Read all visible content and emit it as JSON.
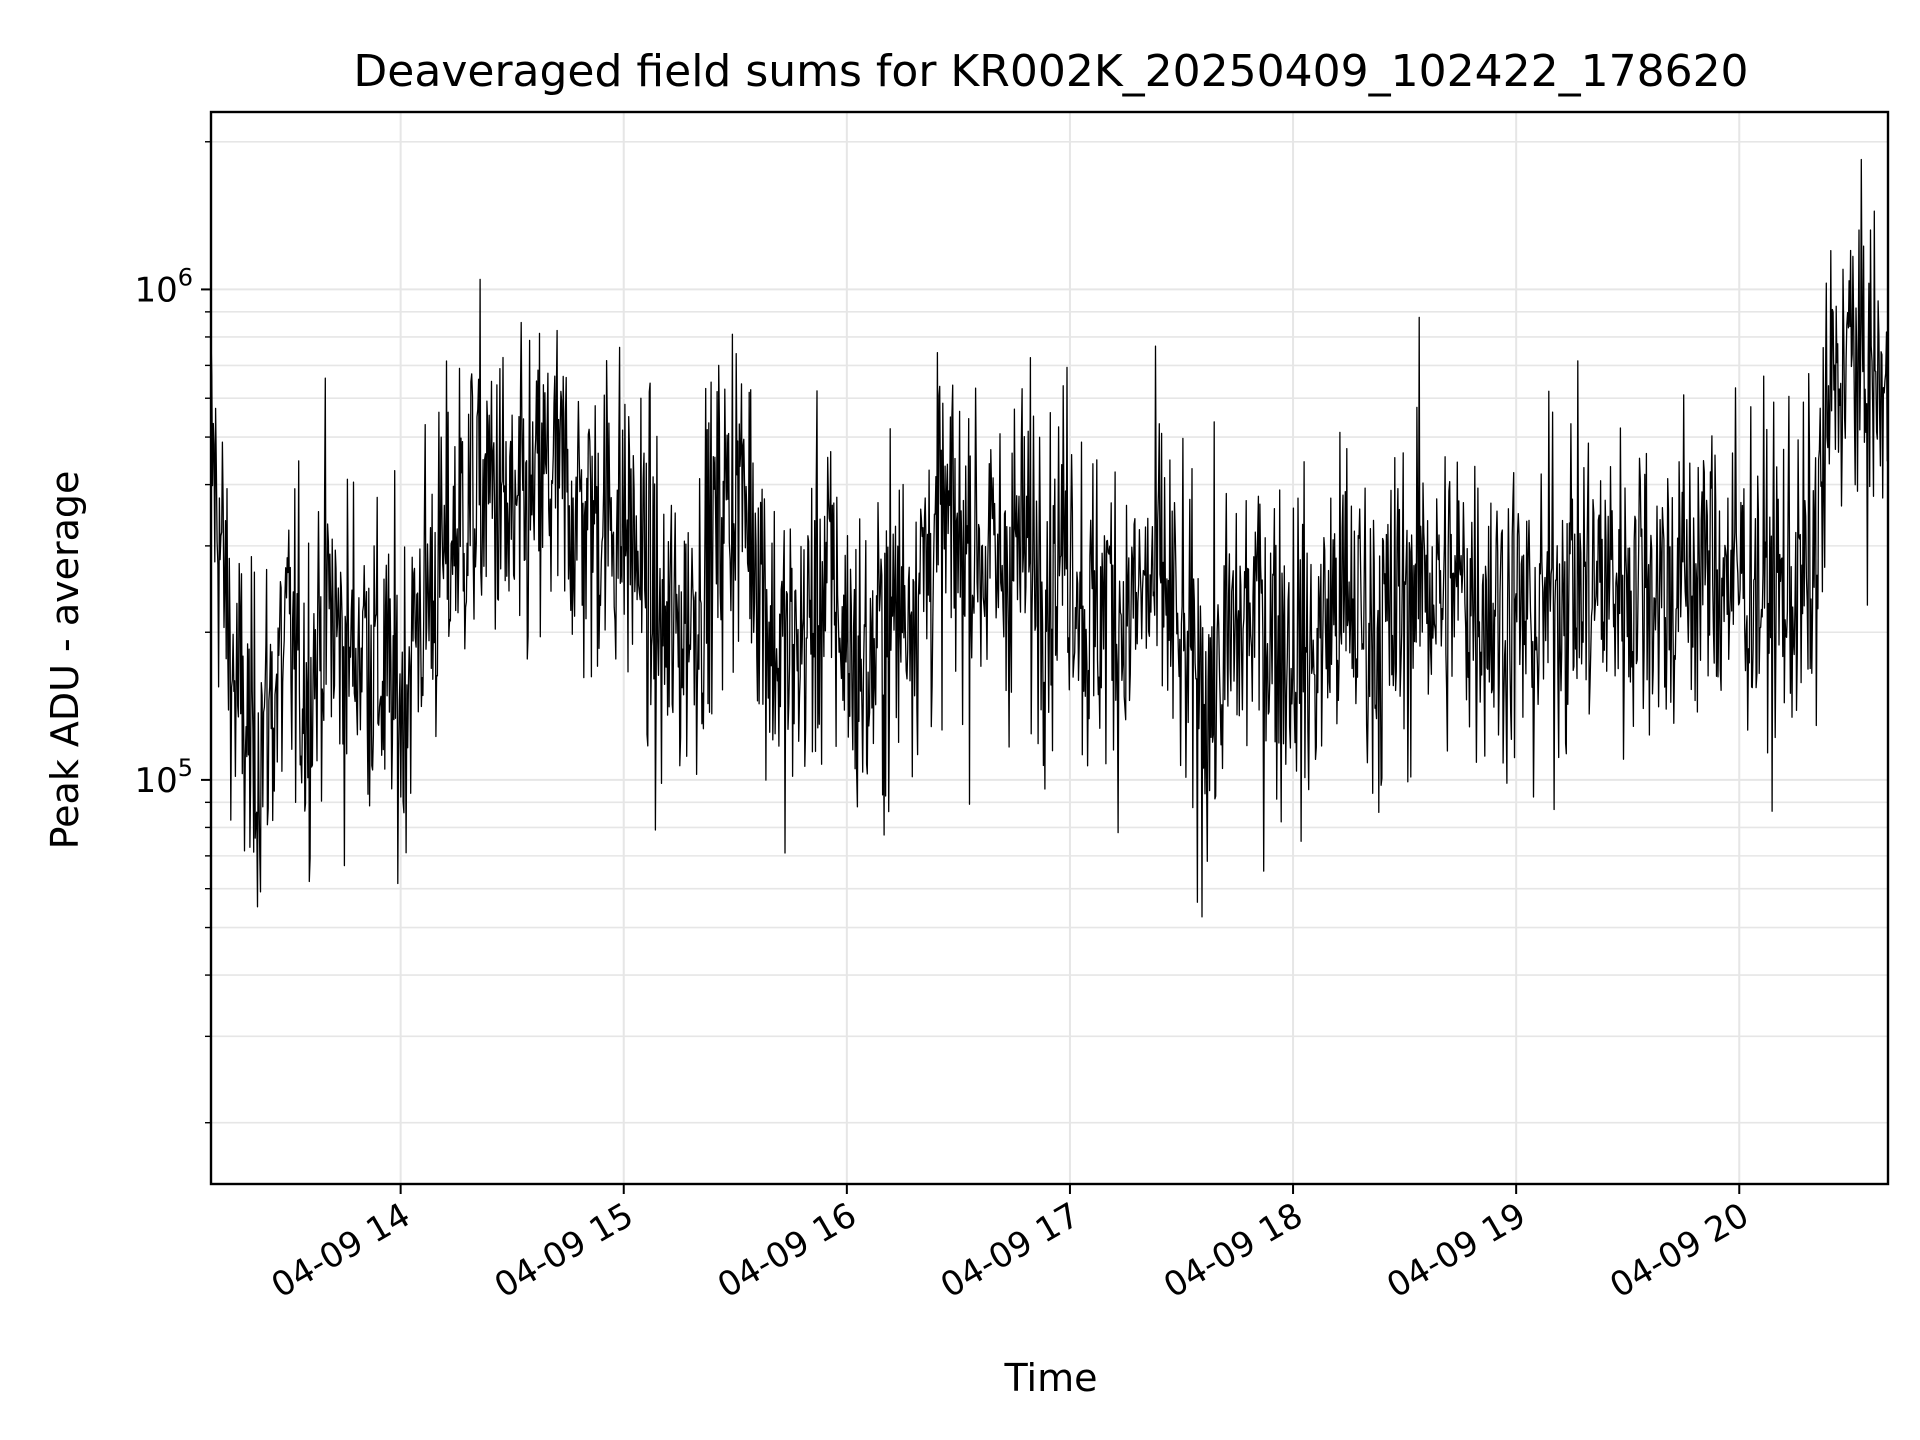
{
  "chart_data": {
    "type": "line",
    "title": "Deaveraged field sums for KR002K_20250409_102422_178620",
    "xlabel": "Time",
    "ylabel": "Peak ADU - average",
    "yscale": "log",
    "ylim": [
      15000,
      2300000
    ],
    "xlim": [
      "2025-04-09 13:09",
      "2025-04-09 20:40"
    ],
    "grid": true,
    "line_color": "#000000",
    "x_ticks": [
      {
        "label": "04-09 14",
        "time": "2025-04-09 14:00"
      },
      {
        "label": "04-09 15",
        "time": "2025-04-09 15:00"
      },
      {
        "label": "04-09 16",
        "time": "2025-04-09 16:00"
      },
      {
        "label": "04-09 17",
        "time": "2025-04-09 17:00"
      },
      {
        "label": "04-09 18",
        "time": "2025-04-09 18:00"
      },
      {
        "label": "04-09 19",
        "time": "2025-04-09 19:00"
      },
      {
        "label": "04-09 20",
        "time": "2025-04-09 20:00"
      }
    ],
    "y_ticks": [
      {
        "base": "10",
        "exp": "5",
        "value": 100000
      },
      {
        "base": "10",
        "exp": "6",
        "value": 1000000
      }
    ],
    "series": [
      {
        "x": [
          "2025-04-09 13:09",
          "2025-04-09 13:15",
          "2025-04-09 13:20",
          "2025-04-09 13:25",
          "2025-04-09 13:30",
          "2025-04-09 13:35",
          "2025-04-09 13:40",
          "2025-04-09 13:45",
          "2025-04-09 13:50",
          "2025-04-09 13:55",
          "2025-04-09 14:00",
          "2025-04-09 14:05",
          "2025-04-09 14:10",
          "2025-04-09 14:15",
          "2025-04-09 14:20",
          "2025-04-09 14:25",
          "2025-04-09 14:30",
          "2025-04-09 14:35",
          "2025-04-09 14:40",
          "2025-04-09 14:45",
          "2025-04-09 14:50",
          "2025-04-09 14:55",
          "2025-04-09 15:00",
          "2025-04-09 15:05",
          "2025-04-09 15:10",
          "2025-04-09 15:15",
          "2025-04-09 15:20",
          "2025-04-09 15:25",
          "2025-04-09 15:30",
          "2025-04-09 15:35",
          "2025-04-09 15:40",
          "2025-04-09 15:45",
          "2025-04-09 15:50",
          "2025-04-09 15:55",
          "2025-04-09 16:00",
          "2025-04-09 16:05",
          "2025-04-09 16:10",
          "2025-04-09 16:15",
          "2025-04-09 16:20",
          "2025-04-09 16:25",
          "2025-04-09 16:30",
          "2025-04-09 16:35",
          "2025-04-09 16:40",
          "2025-04-09 16:45",
          "2025-04-09 16:50",
          "2025-04-09 16:55",
          "2025-04-09 17:00",
          "2025-04-09 17:05",
          "2025-04-09 17:10",
          "2025-04-09 17:15",
          "2025-04-09 17:20",
          "2025-04-09 17:25",
          "2025-04-09 17:30",
          "2025-04-09 17:35",
          "2025-04-09 17:40",
          "2025-04-09 17:45",
          "2025-04-09 17:50",
          "2025-04-09 17:55",
          "2025-04-09 18:00",
          "2025-04-09 18:05",
          "2025-04-09 18:10",
          "2025-04-09 18:15",
          "2025-04-09 18:20",
          "2025-04-09 18:25",
          "2025-04-09 18:30",
          "2025-04-09 18:35",
          "2025-04-09 18:40",
          "2025-04-09 18:45",
          "2025-04-09 18:50",
          "2025-04-09 18:55",
          "2025-04-09 19:00",
          "2025-04-09 19:05",
          "2025-04-09 19:10",
          "2025-04-09 19:15",
          "2025-04-09 19:20",
          "2025-04-09 19:25",
          "2025-04-09 19:30",
          "2025-04-09 19:35",
          "2025-04-09 19:40",
          "2025-04-09 19:45",
          "2025-04-09 19:50",
          "2025-04-09 19:55",
          "2025-04-09 20:00",
          "2025-04-09 20:05",
          "2025-04-09 20:10",
          "2025-04-09 20:15",
          "2025-04-09 20:20",
          "2025-04-09 20:25",
          "2025-04-09 20:30",
          "2025-04-09 20:35",
          "2025-04-09 20:40"
        ],
        "y": [
          480000,
          160000,
          110000,
          140000,
          190000,
          150000,
          230000,
          180000,
          200000,
          160000,
          140000,
          220000,
          260000,
          330000,
          380000,
          400000,
          310000,
          360000,
          420000,
          380000,
          330000,
          360000,
          330000,
          280000,
          190000,
          200000,
          240000,
          330000,
          410000,
          330000,
          190000,
          170000,
          210000,
          260000,
          190000,
          160000,
          200000,
          230000,
          260000,
          330000,
          300000,
          310000,
          260000,
          300000,
          290000,
          270000,
          330000,
          200000,
          240000,
          210000,
          240000,
          260000,
          180000,
          150000,
          160000,
          200000,
          220000,
          200000,
          190000,
          170000,
          220000,
          230000,
          210000,
          200000,
          230000,
          280000,
          230000,
          250000,
          240000,
          220000,
          220000,
          200000,
          240000,
          260000,
          240000,
          260000,
          250000,
          270000,
          240000,
          260000,
          270000,
          270000,
          260000,
          250000,
          240000,
          250000,
          260000,
          640000,
          750000,
          660000,
          590000
        ]
      }
    ]
  }
}
